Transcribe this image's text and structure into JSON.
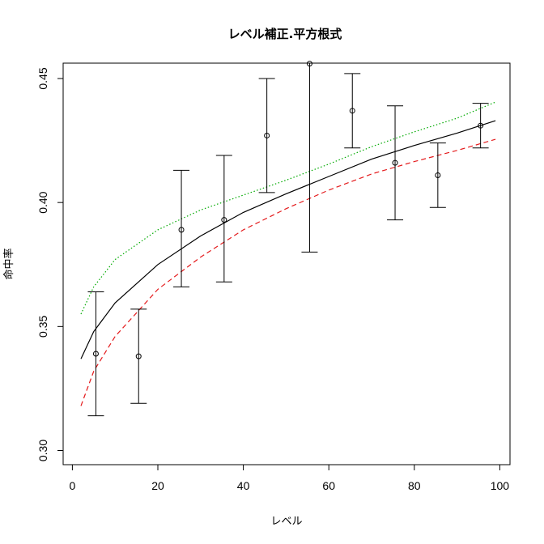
{
  "chart_data": {
    "type": "scatter",
    "title": "レベル補正.平方根式",
    "xlabel": "レベル",
    "ylabel": "命中率",
    "xlim": [
      0,
      100
    ],
    "ylim": [
      0.3,
      0.45
    ],
    "x_ticks": [
      "0",
      "20",
      "40",
      "60",
      "80",
      "100"
    ],
    "y_ticks": [
      "0.30",
      "0.35",
      "0.40",
      "0.45"
    ],
    "grid": false,
    "legend": "none",
    "points": {
      "x": [
        5.5,
        15.5,
        25.5,
        35.5,
        45.5,
        55.5,
        65.5,
        75.5,
        85.5,
        95.5
      ],
      "y": [
        0.339,
        0.338,
        0.389,
        0.393,
        0.427,
        0.456,
        0.437,
        0.416,
        0.411,
        0.431
      ],
      "err_low": [
        0.314,
        0.319,
        0.366,
        0.368,
        0.404,
        0.38,
        0.422,
        0.393,
        0.398,
        0.422
      ],
      "err_high": [
        0.364,
        0.357,
        0.413,
        0.419,
        0.45,
        0.47,
        0.452,
        0.439,
        0.424,
        0.44
      ]
    },
    "curves": [
      {
        "color": "#000000",
        "dash": "solid",
        "x": [
          2,
          5,
          10,
          20,
          30,
          40,
          50,
          60,
          70,
          80,
          90,
          99
        ],
        "y": [
          0.337,
          0.348,
          0.3595,
          0.375,
          0.3865,
          0.396,
          0.4035,
          0.4105,
          0.4175,
          0.423,
          0.428,
          0.433
        ]
      },
      {
        "color": "#e41a1c",
        "dash": "dashed",
        "x": [
          2,
          5,
          10,
          20,
          30,
          40,
          50,
          60,
          70,
          80,
          90,
          99
        ],
        "y": [
          0.318,
          0.332,
          0.346,
          0.365,
          0.378,
          0.389,
          0.3975,
          0.405,
          0.4115,
          0.4165,
          0.421,
          0.4255
        ]
      },
      {
        "color": "#00aa00",
        "dash": "dotted",
        "x": [
          2,
          5,
          10,
          20,
          30,
          40,
          50,
          60,
          70,
          80,
          90,
          99
        ],
        "y": [
          0.355,
          0.366,
          0.377,
          0.389,
          0.397,
          0.403,
          0.409,
          0.4155,
          0.4225,
          0.4285,
          0.434,
          0.4405
        ]
      }
    ]
  }
}
